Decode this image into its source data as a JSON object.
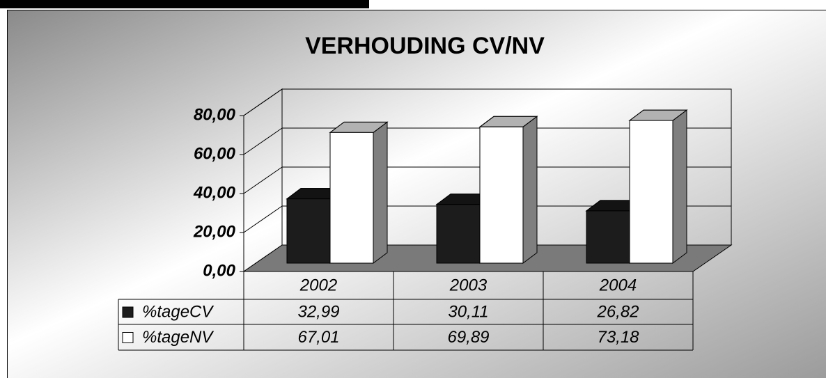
{
  "chart_data": {
    "type": "bar3d",
    "title": "VERHOUDING CV/NV",
    "categories": [
      "2002",
      "2003",
      "2004"
    ],
    "series": [
      {
        "name": "%tageCV",
        "color": "#1c1c1c",
        "values": [
          32.99,
          30.11,
          26.82
        ],
        "value_labels": [
          "32,99",
          "30,11",
          "26,82"
        ]
      },
      {
        "name": "%tageNV",
        "color": "#ffffff",
        "values": [
          67.01,
          69.89,
          73.18
        ],
        "value_labels": [
          "67,01",
          "69,89",
          "73,18"
        ]
      }
    ],
    "ylim": [
      0,
      80
    ],
    "yticks": [
      {
        "value": 0,
        "label": "0,00"
      },
      {
        "value": 20,
        "label": "20,00"
      },
      {
        "value": 40,
        "label": "40,00"
      },
      {
        "value": 60,
        "label": "60,00"
      },
      {
        "value": 80,
        "label": "80,00"
      }
    ],
    "grid": true
  }
}
